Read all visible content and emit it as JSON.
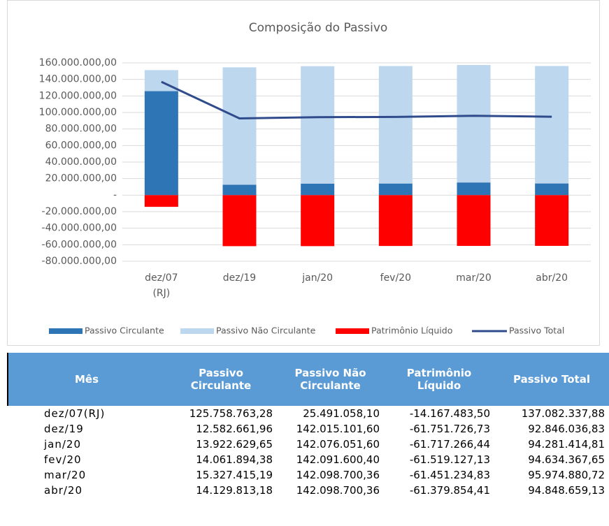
{
  "chart_data": {
    "type": "bar",
    "stacked": true,
    "title": "Composição do Passivo",
    "categories": [
      "dez/07 (RJ)",
      "dez/19",
      "jan/20",
      "fev/20",
      "mar/20",
      "abr/20"
    ],
    "series": [
      {
        "name": "Passivo Circulante",
        "color": "#2e75b6",
        "kind": "bar",
        "values": [
          125758763.28,
          12582661.96,
          13922629.65,
          14061894.38,
          15327415.19,
          14129813.18
        ]
      },
      {
        "name": "Passivo Não Circulante",
        "color": "#bdd7ee",
        "kind": "bar",
        "values": [
          25491058.1,
          142015101.6,
          142076051.6,
          142091600.4,
          142098700.36,
          142098700.36
        ]
      },
      {
        "name": "Patrimônio Líquido",
        "color": "#ff0000",
        "kind": "bar",
        "values": [
          -14167483.5,
          -61751726.73,
          -61717266.44,
          -61519127.13,
          -61451234.83,
          -61379854.41
        ]
      },
      {
        "name": "Passivo Total",
        "color": "#2f4b8c",
        "kind": "line",
        "values": [
          137082337.88,
          92846036.83,
          94281414.81,
          94634367.65,
          95974880.72,
          94848659.13
        ]
      }
    ],
    "ylim": [
      -80000000,
      160000000
    ],
    "yticks": [
      {
        "value": 160000000,
        "label": "160.000.000,00"
      },
      {
        "value": 140000000,
        "label": "140.000.000,00"
      },
      {
        "value": 120000000,
        "label": "120.000.000,00"
      },
      {
        "value": 100000000,
        "label": "100.000.000,00"
      },
      {
        "value": 80000000,
        "label": "80.000.000,00"
      },
      {
        "value": 60000000,
        "label": "60.000.000,00"
      },
      {
        "value": 40000000,
        "label": "40.000.000,00"
      },
      {
        "value": 20000000,
        "label": "20.000.000,00"
      },
      {
        "value": 0,
        "label": "-"
      },
      {
        "value": -20000000,
        "label": "-20.000.000,00"
      },
      {
        "value": -40000000,
        "label": "-40.000.000,00"
      },
      {
        "value": -60000000,
        "label": "-60.000.000,00"
      },
      {
        "value": -80000000,
        "label": "-80.000.000,00"
      }
    ],
    "grid": true,
    "legend": "bottom"
  },
  "table": {
    "columns": [
      "Mês",
      "Passivo Circulante",
      "Passivo Não Circulante",
      "Patrimônio Líquido",
      "Passivo Total"
    ],
    "rows": [
      [
        "dez/07(RJ)",
        "125.758.763,28",
        "25.491.058,10",
        "-14.167.483,50",
        "137.082.337,88"
      ],
      [
        "dez/19",
        "12.582.661,96",
        "142.015.101,60",
        "-61.751.726,73",
        "92.846.036,83"
      ],
      [
        "jan/20",
        "13.922.629,65",
        "142.076.051,60",
        "-61.717.266,44",
        "94.281.414,81"
      ],
      [
        "fev/20",
        "14.061.894,38",
        "142.091.600,40",
        "-61.519.127,13",
        "94.634.367,65"
      ],
      [
        "mar/20",
        "15.327.415,19",
        "142.098.700,36",
        "-61.451.234,83",
        "95.974.880,72"
      ],
      [
        "abr/20",
        "14.129.813,18",
        "142.098.700,36",
        "-61.379.854,41",
        "94.848.659,13"
      ]
    ]
  }
}
